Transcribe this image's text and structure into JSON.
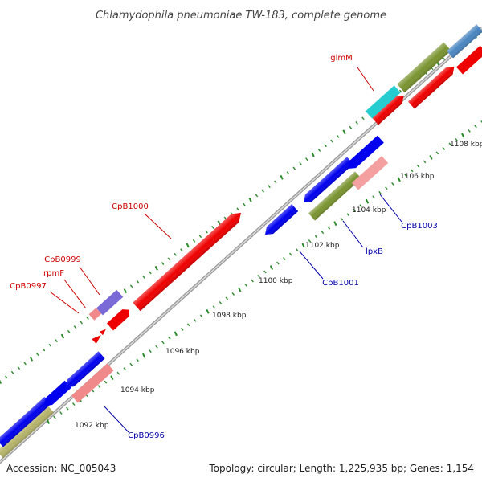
{
  "title": "Chlamydophila pneumoniae TW-183, complete genome",
  "footer": {
    "accession": "Accession: NC_005043",
    "summary": "Topology: circular; Length: 1,225,935 bp; Genes: 1,154"
  },
  "colors": {
    "forward_label": "#cc0000",
    "reverse_label": "#0000aa",
    "backbone": "#a8a8a8",
    "tick": "#2a8a2a"
  },
  "ticks": [
    {
      "label": "1092 kbp"
    },
    {
      "label": "1094 kbp"
    },
    {
      "label": "1096 kbp"
    },
    {
      "label": "1098 kbp"
    },
    {
      "label": "1100 kbp"
    },
    {
      "label": "1102 kbp"
    },
    {
      "label": "1104 kbp"
    },
    {
      "label": "1106 kbp"
    },
    {
      "label": "1108 kbp"
    }
  ],
  "gene_labels": [
    {
      "name": "glmM",
      "strand": "forward"
    },
    {
      "name": "CpB1000",
      "strand": "forward"
    },
    {
      "name": "CpB0999",
      "strand": "forward"
    },
    {
      "name": "rpmF",
      "strand": "forward"
    },
    {
      "name": "CpB0997",
      "strand": "forward"
    },
    {
      "name": "CpB1003",
      "strand": "reverse"
    },
    {
      "name": "lpxB",
      "strand": "reverse"
    },
    {
      "name": "CpB1001",
      "strand": "reverse"
    },
    {
      "name": "CpB0996",
      "strand": "reverse"
    }
  ]
}
